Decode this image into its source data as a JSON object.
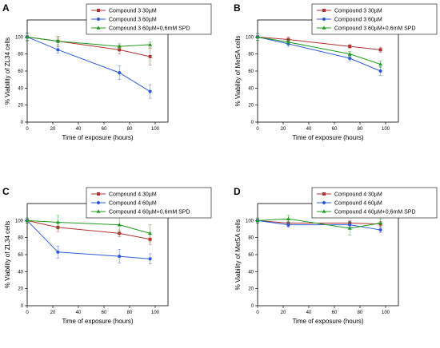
{
  "chart_data": [
    {
      "panel": "A",
      "type": "line",
      "xlabel": "Time of exposure (hours)",
      "ylabel": "% Viability of ZL34 cells",
      "xlim": [
        0,
        110
      ],
      "ylim": [
        0,
        120
      ],
      "xticks": [
        "0",
        "20",
        "40",
        "60",
        "80",
        "100"
      ],
      "yticks": [
        "0",
        "20",
        "40",
        "60",
        "80",
        "100"
      ],
      "x": [
        0,
        24,
        72,
        96
      ],
      "legend_position": "top-right",
      "series": [
        {
          "name": "Compound 3 30µM",
          "color": "#b23232",
          "marker": "square",
          "values": [
            100,
            95,
            85,
            77
          ],
          "errors": [
            4,
            6,
            5,
            10
          ]
        },
        {
          "name": "Compound 3  60µM",
          "color": "#2d5bd6",
          "marker": "circle",
          "values": [
            100,
            85,
            58,
            36
          ],
          "errors": [
            4,
            4,
            8,
            8
          ]
        },
        {
          "name": "Compound 3  60µM+0,6mM SPD",
          "color": "#1e9b1e",
          "marker": "triangle",
          "values": [
            100,
            95,
            89,
            91
          ],
          "errors": [
            5,
            4,
            3,
            3
          ]
        }
      ]
    },
    {
      "panel": "B",
      "type": "line",
      "xlabel": "Time of exposure (hours)",
      "ylabel": "% Viability of Met5A cells",
      "xlim": [
        0,
        110
      ],
      "ylim": [
        0,
        120
      ],
      "xticks": [
        "0",
        "20",
        "40",
        "60",
        "80",
        "100"
      ],
      "yticks": [
        "0",
        "20",
        "40",
        "60",
        "80",
        "100"
      ],
      "x": [
        0,
        24,
        72,
        96
      ],
      "legend_position": "top-right",
      "series": [
        {
          "name": "Compound 3 30µM",
          "color": "#b23232",
          "marker": "square",
          "values": [
            100,
            97,
            89,
            85
          ],
          "errors": [
            4,
            3,
            2,
            3
          ]
        },
        {
          "name": "Compound 3 60µM",
          "color": "#2d5bd6",
          "marker": "circle",
          "values": [
            100,
            92,
            75,
            60
          ],
          "errors": [
            4,
            3,
            3,
            5
          ]
        },
        {
          "name": "Compound 3 60µM+0,6mM SPD",
          "color": "#1e9b1e",
          "marker": "triangle",
          "values": [
            100,
            94,
            80,
            68
          ],
          "errors": [
            4,
            3,
            3,
            4
          ]
        }
      ]
    },
    {
      "panel": "C",
      "type": "line",
      "xlabel": "Time of exposure (hours)",
      "ylabel": "% Viability of ZL34 cells",
      "xlim": [
        0,
        110
      ],
      "ylim": [
        0,
        120
      ],
      "xticks": [
        "0",
        "20",
        "40",
        "60",
        "80",
        "100"
      ],
      "yticks": [
        "0",
        "20",
        "40",
        "60",
        "80",
        "100"
      ],
      "x": [
        0,
        24,
        72,
        96
      ],
      "legend_position": "top-right",
      "series": [
        {
          "name": "Compound 4 30µM",
          "color": "#b23232",
          "marker": "square",
          "values": [
            100,
            92,
            85,
            78
          ],
          "errors": [
            3,
            5,
            4,
            6
          ]
        },
        {
          "name": "Compound 4 60µM",
          "color": "#2d5bd6",
          "marker": "circle",
          "values": [
            100,
            63,
            58,
            55
          ],
          "errors": [
            3,
            7,
            8,
            6
          ]
        },
        {
          "name": "Compound 4 60µM+0,6mM SPD",
          "color": "#1e9b1e",
          "marker": "triangle",
          "values": [
            100,
            98,
            95,
            85
          ],
          "errors": [
            3,
            8,
            9,
            10
          ]
        }
      ]
    },
    {
      "panel": "D",
      "type": "line",
      "xlabel": "Time of exposure (hours)",
      "ylabel": "% Viability of Met5A cells",
      "xlim": [
        0,
        110
      ],
      "ylim": [
        0,
        120
      ],
      "xticks": [
        "0",
        "20",
        "40",
        "60",
        "80",
        "100"
      ],
      "yticks": [
        "0",
        "20",
        "40",
        "60",
        "80",
        "100"
      ],
      "x": [
        0,
        24,
        72,
        96
      ],
      "legend_position": "top-right",
      "series": [
        {
          "name": "Compound 4 30µM",
          "color": "#b23232",
          "marker": "square",
          "values": [
            100,
            97,
            97,
            96
          ],
          "errors": [
            3,
            4,
            3,
            3
          ]
        },
        {
          "name": "Compound 4 60µM",
          "color": "#2d5bd6",
          "marker": "circle",
          "values": [
            100,
            95,
            95,
            89
          ],
          "errors": [
            3,
            3,
            3,
            3
          ]
        },
        {
          "name": "Compound 4 60µM+0,6mM SPD",
          "color": "#1e9b1e",
          "marker": "triangle",
          "values": [
            100,
            102,
            91,
            97
          ],
          "errors": [
            3,
            4,
            8,
            5
          ]
        }
      ]
    }
  ]
}
